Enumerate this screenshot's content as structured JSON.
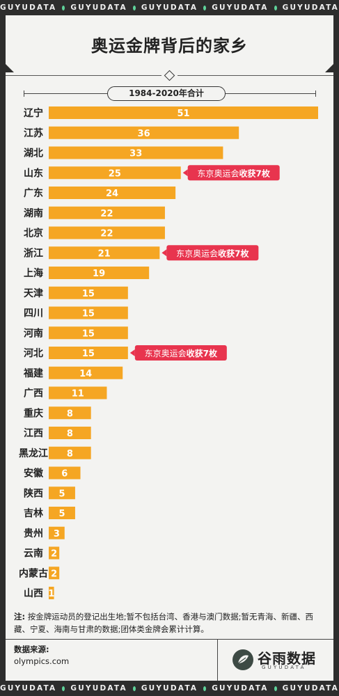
{
  "ticker_text": "GUYUDATA",
  "title": "奥运金牌背后的家乡",
  "subtitle": "1984-2020年合计",
  "chart_data": {
    "type": "bar",
    "orientation": "horizontal",
    "categories": [
      "辽宁",
      "江苏",
      "湖北",
      "山东",
      "广东",
      "湖南",
      "北京",
      "浙江",
      "上海",
      "天津",
      "四川",
      "河南",
      "河北",
      "福建",
      "广西",
      "重庆",
      "江西",
      "黑龙江",
      "安徽",
      "陕西",
      "吉林",
      "贵州",
      "云南",
      "内蒙古",
      "山西"
    ],
    "values": [
      51,
      36,
      33,
      25,
      24,
      22,
      22,
      21,
      19,
      15,
      15,
      15,
      15,
      14,
      11,
      8,
      8,
      8,
      6,
      5,
      5,
      3,
      2,
      2,
      1
    ],
    "xlim": [
      0,
      51
    ],
    "bar_color": "#f5a623",
    "annotations": [
      {
        "category": "山东",
        "normal": "东京奥运会",
        "bold": "收获7枚"
      },
      {
        "category": "浙江",
        "normal": "东京奥运会",
        "bold": "收获7枚"
      },
      {
        "category": "河北",
        "normal": "东京奥运会",
        "bold": "收获7枚"
      }
    ],
    "annotation_color": "#e8344e"
  },
  "note": {
    "label": "注:",
    "text": "按金牌运动员的登记出生地;暂不包括台湾、香港与澳门数据;暂无青海、新疆、西藏、宁夏、海南与甘肃的数据;团体类金牌会累计计算。"
  },
  "source": {
    "label": "数据来源:",
    "value": "olympics.com"
  },
  "logo": {
    "name": "谷雨数据",
    "sub": "GUYUDATA"
  }
}
